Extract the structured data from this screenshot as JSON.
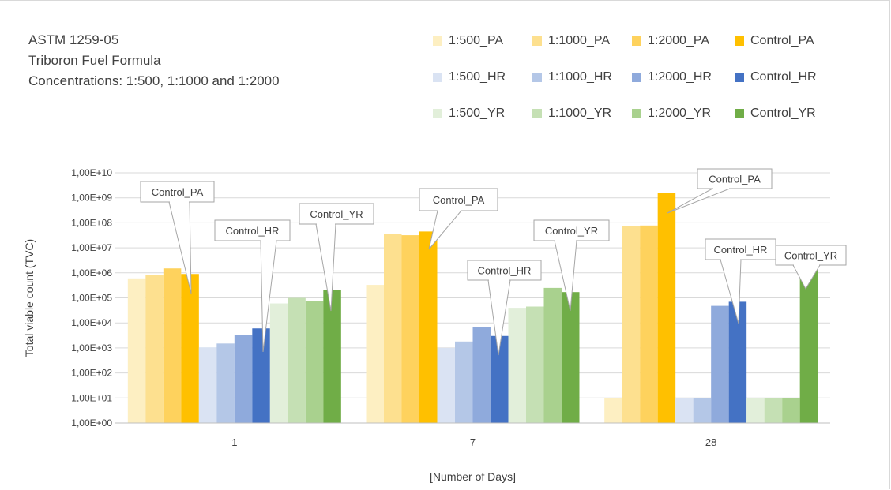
{
  "title_lines": [
    "ASTM 1259-05",
    "Triboron Fuel Formula",
    "Concentrations: 1:500, 1:1000 and 1:2000"
  ],
  "chart_data": {
    "type": "bar",
    "categories": [
      "1",
      "7",
      "28"
    ],
    "xlabel": "[Number of Days]",
    "ylabel": "Total viable count (TVC)",
    "yscale": "log",
    "ylim": [
      1,
      10000000000
    ],
    "y_ticks": [
      "1,00E+00",
      "1,00E+01",
      "1,00E+02",
      "1,00E+03",
      "1,00E+04",
      "1,00E+05",
      "1,00E+06",
      "1,00E+07",
      "1,00E+08",
      "1,00E+09",
      "1,00E+10"
    ],
    "grid": true,
    "legend_position": "top-right",
    "series": [
      {
        "name": "1:500_PA",
        "color": "#fdefc2",
        "values": [
          600000,
          330000,
          10
        ]
      },
      {
        "name": "1:1000_PA",
        "color": "#fde08f",
        "values": [
          850000,
          35000000,
          75000000
        ]
      },
      {
        "name": "1:2000_PA",
        "color": "#fed25d",
        "values": [
          1500000,
          32000000,
          78000000
        ]
      },
      {
        "name": "Control_PA",
        "color": "#ffc000",
        "values": [
          900000,
          45000000,
          1600000000
        ]
      },
      {
        "name": "1:500_HR",
        "color": "#dae3f3",
        "values": [
          1050,
          1000,
          10
        ]
      },
      {
        "name": "1:1000_HR",
        "color": "#b4c7e7",
        "values": [
          1500,
          1800,
          10
        ]
      },
      {
        "name": "1:2000_HR",
        "color": "#8faadc",
        "values": [
          3300,
          7000,
          48000
        ]
      },
      {
        "name": "Control_HR",
        "color": "#4472c4",
        "values": [
          6000,
          3000,
          70000
        ]
      },
      {
        "name": "1:500_YR",
        "color": "#e2efda",
        "values": [
          60000,
          40000,
          10
        ]
      },
      {
        "name": "1:1000_YR",
        "color": "#c5e0b4",
        "values": [
          100000,
          45000,
          10
        ]
      },
      {
        "name": "1:2000_YR",
        "color": "#a9d18e",
        "values": [
          75000,
          250000,
          10
        ]
      },
      {
        "name": "Control_YR",
        "color": "#70ad47",
        "values": [
          200000,
          170000,
          1500000
        ]
      }
    ],
    "annotations": [
      {
        "text": "Control_PA",
        "category": "1"
      },
      {
        "text": "Control_HR",
        "category": "1"
      },
      {
        "text": "Control_YR",
        "category": "1"
      },
      {
        "text": "Control_PA",
        "category": "7"
      },
      {
        "text": "Control_HR",
        "category": "7"
      },
      {
        "text": "Control_YR",
        "category": "7"
      },
      {
        "text": "Control_PA",
        "category": "28"
      },
      {
        "text": "Control_HR",
        "category": "28"
      },
      {
        "text": "Control_YR",
        "category": "28"
      }
    ]
  }
}
